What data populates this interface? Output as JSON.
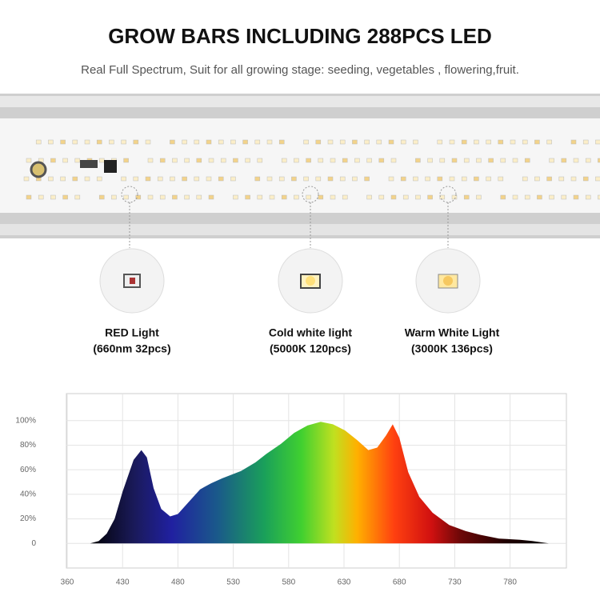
{
  "header": {
    "title": "GROW BARS INCLUDING 288PCS LED",
    "subtitle": "Real Full Spectrum,  Suit for all growing stage: seeding, vegetables , flowering,fruit."
  },
  "leds": [
    {
      "name": "RED Light",
      "detail": "(660nm 32pcs)"
    },
    {
      "name": "Cold white light",
      "detail": "(5000K 120pcs)"
    },
    {
      "name": "Warm White Light",
      "detail": "(3000K 136pcs)"
    }
  ],
  "chart_data": {
    "type": "area",
    "x": [
      389,
      400,
      410,
      420,
      430,
      440,
      447,
      452,
      458,
      465,
      473,
      480,
      490,
      500,
      510,
      520,
      537,
      550,
      560,
      573,
      585,
      597,
      609,
      620,
      631,
      642,
      652,
      660,
      668,
      674,
      680,
      688,
      698,
      710,
      725,
      740,
      753,
      770,
      789,
      800,
      815
    ],
    "y": [
      0,
      2,
      8,
      20,
      42,
      68,
      76,
      70,
      45,
      28,
      22,
      24,
      34,
      44,
      49,
      53,
      59,
      66,
      73,
      81,
      90,
      96,
      99,
      97,
      92,
      84,
      76,
      78,
      88,
      97,
      86,
      58,
      38,
      25,
      15,
      10,
      7,
      4,
      3,
      2,
      0
    ],
    "xlim": [
      360,
      830
    ],
    "xticks": [
      360,
      430,
      480,
      530,
      580,
      630,
      680,
      730,
      780
    ],
    "ylim": [
      -20,
      122
    ],
    "yticks": [
      0,
      {
        "value": 20,
        "label": "20%"
      },
      {
        "value": 40,
        "label": "40%"
      },
      {
        "value": 60,
        "label": "60%"
      },
      {
        "value": 80,
        "label": "80%"
      },
      {
        "value": 100,
        "label": "100%"
      }
    ],
    "grid": true
  }
}
